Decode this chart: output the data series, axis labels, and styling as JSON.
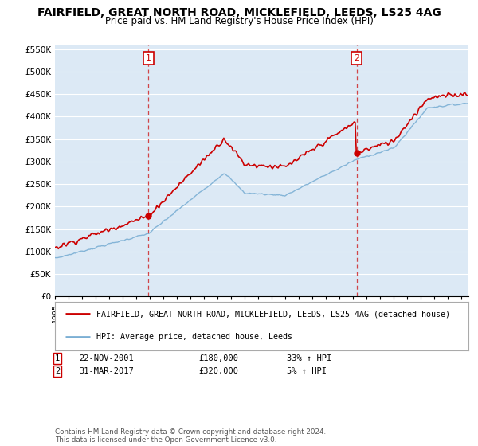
{
  "title": "FAIRFIELD, GREAT NORTH ROAD, MICKLEFIELD, LEEDS, LS25 4AG",
  "subtitle": "Price paid vs. HM Land Registry's House Price Index (HPI)",
  "ylim": [
    0,
    560000
  ],
  "yticks": [
    0,
    50000,
    100000,
    150000,
    200000,
    250000,
    300000,
    350000,
    400000,
    450000,
    500000,
    550000
  ],
  "ytick_labels": [
    "£0",
    "£50K",
    "£100K",
    "£150K",
    "£200K",
    "£250K",
    "£300K",
    "£350K",
    "£400K",
    "£450K",
    "£500K",
    "£550K"
  ],
  "sale_color": "#cc0000",
  "hpi_color": "#7bafd4",
  "vline_color": "#cc0000",
  "background_color": "#ffffff",
  "plot_bg_color": "#dce9f5",
  "grid_color": "#ffffff",
  "sale1_date": 2001.9,
  "sale1_price": 180000,
  "sale2_date": 2017.25,
  "sale2_price": 320000,
  "legend_sale_label": "FAIRFIELD, GREAT NORTH ROAD, MICKLEFIELD, LEEDS, LS25 4AG (detached house)",
  "legend_hpi_label": "HPI: Average price, detached house, Leeds",
  "annotation1": [
    "1",
    "22-NOV-2001",
    "£180,000",
    "33% ↑ HPI"
  ],
  "annotation2": [
    "2",
    "31-MAR-2017",
    "£320,000",
    "5% ↑ HPI"
  ],
  "footnote": "Contains HM Land Registry data © Crown copyright and database right 2024.\nThis data is licensed under the Open Government Licence v3.0.",
  "title_fontsize": 10,
  "subtitle_fontsize": 9,
  "xstart": 1995,
  "xend": 2025.5
}
